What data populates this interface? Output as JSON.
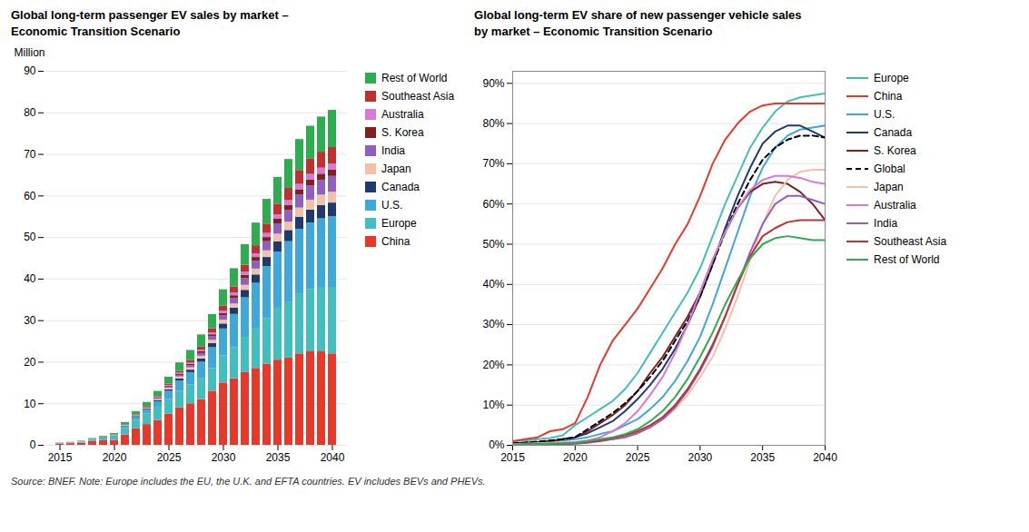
{
  "caption": "Source: BNEF. Note: Europe includes the EU, the U.K. and EFTA countries. EV includes BEVs and PHEVs.",
  "chart_data": [
    {
      "type": "bar",
      "stacked": true,
      "title": "Global long-term passenger EV sales by market –\nEconomic Transition Scenario",
      "y_label": "Million",
      "categories": [
        "2015",
        null,
        null,
        null,
        null,
        "2020",
        null,
        null,
        null,
        null,
        "2025",
        null,
        null,
        null,
        null,
        "2030",
        null,
        null,
        null,
        null,
        "2035",
        null,
        null,
        null,
        null,
        "2040"
      ],
      "series": [
        {
          "name": "China",
          "color": "#e8382a",
          "values": [
            0.3,
            0.4,
            0.55,
            0.9,
            1.1,
            1.2,
            2.5,
            4.0,
            5.0,
            6.0,
            7.5,
            9.0,
            10.0,
            11.0,
            13.0,
            15.0,
            16.0,
            17.5,
            18.5,
            19.5,
            20.5,
            21.0,
            22.0,
            22.5,
            22.5,
            22.0
          ]
        },
        {
          "name": "Europe",
          "color": "#42bebe",
          "values": [
            0.08,
            0.1,
            0.15,
            0.25,
            0.4,
            0.8,
            1.5,
            2.0,
            2.5,
            3.0,
            3.5,
            4.0,
            4.5,
            5.0,
            5.5,
            6.5,
            7.5,
            8.5,
            9.5,
            11.0,
            12.5,
            13.5,
            14.5,
            15.0,
            15.5,
            16.0
          ]
        },
        {
          "name": "U.S.",
          "color": "#3ea8d8",
          "values": [
            0.07,
            0.08,
            0.1,
            0.2,
            0.25,
            0.3,
            0.55,
            0.8,
            1.0,
            1.5,
            2.0,
            2.5,
            3.0,
            4.0,
            5.0,
            6.5,
            8.0,
            9.5,
            11.0,
            12.5,
            13.5,
            14.5,
            15.5,
            16.0,
            16.5,
            17.0
          ]
        },
        {
          "name": "Canada",
          "color": "#1e3a6e",
          "values": [
            0.01,
            0.01,
            0.02,
            0.03,
            0.04,
            0.05,
            0.1,
            0.15,
            0.2,
            0.3,
            0.4,
            0.5,
            0.6,
            0.8,
            1.0,
            1.2,
            1.5,
            1.8,
            2.0,
            2.2,
            2.5,
            2.7,
            2.9,
            3.1,
            3.2,
            3.3
          ]
        },
        {
          "name": "Japan",
          "color": "#f5c0a8",
          "values": [
            0.04,
            0.04,
            0.05,
            0.05,
            0.06,
            0.07,
            0.1,
            0.13,
            0.18,
            0.25,
            0.35,
            0.45,
            0.55,
            0.65,
            0.75,
            0.9,
            1.0,
            1.2,
            1.4,
            1.6,
            1.8,
            2.0,
            2.2,
            2.4,
            2.5,
            2.6
          ]
        },
        {
          "name": "India",
          "color": "#9060c0",
          "values": [
            0.01,
            0.01,
            0.01,
            0.02,
            0.03,
            0.04,
            0.07,
            0.1,
            0.13,
            0.18,
            0.28,
            0.38,
            0.5,
            0.65,
            0.85,
            1.05,
            1.3,
            1.6,
            1.9,
            2.2,
            2.5,
            2.8,
            3.1,
            3.4,
            3.6,
            3.8
          ]
        },
        {
          "name": "S. Korea",
          "color": "#802020",
          "values": [
            0.01,
            0.01,
            0.02,
            0.03,
            0.04,
            0.05,
            0.08,
            0.1,
            0.14,
            0.18,
            0.24,
            0.3,
            0.35,
            0.4,
            0.5,
            0.6,
            0.7,
            0.8,
            0.9,
            1.0,
            1.1,
            1.2,
            1.3,
            1.4,
            1.45,
            1.5
          ]
        },
        {
          "name": "Australia",
          "color": "#d878d8",
          "values": [
            0.0,
            0.0,
            0.01,
            0.01,
            0.01,
            0.02,
            0.03,
            0.05,
            0.07,
            0.1,
            0.16,
            0.22,
            0.28,
            0.37,
            0.47,
            0.58,
            0.68,
            0.78,
            0.88,
            0.98,
            1.08,
            1.18,
            1.28,
            1.38,
            1.44,
            1.5
          ]
        },
        {
          "name": "Southeast Asia",
          "color": "#c03030",
          "values": [
            0.01,
            0.01,
            0.01,
            0.02,
            0.03,
            0.04,
            0.07,
            0.1,
            0.15,
            0.22,
            0.32,
            0.45,
            0.6,
            0.75,
            0.95,
            1.15,
            1.38,
            1.65,
            1.95,
            2.25,
            2.55,
            2.95,
            3.35,
            3.65,
            3.85,
            3.95
          ]
        },
        {
          "name": "Rest of World",
          "color": "#2eac50",
          "values": [
            0.04,
            0.06,
            0.09,
            0.13,
            0.18,
            0.28,
            0.48,
            0.68,
            0.95,
            1.25,
            1.65,
            2.05,
            2.45,
            2.95,
            3.45,
            3.95,
            4.45,
            4.95,
            5.45,
            5.95,
            6.45,
            6.95,
            7.45,
            7.95,
            8.45,
            8.95
          ]
        }
      ],
      "ylim": [
        0,
        90
      ],
      "yticks": [
        0,
        10,
        20,
        30,
        40,
        50,
        60,
        70,
        80,
        90
      ],
      "grid": true,
      "legend": "right"
    },
    {
      "type": "line",
      "title": "Global long-term EV share of new passenger vehicle sales\nby market – Economic Transition Scenario",
      "x": [
        2015,
        2016,
        2017,
        2018,
        2019,
        2020,
        2021,
        2022,
        2023,
        2024,
        2025,
        2026,
        2027,
        2028,
        2029,
        2030,
        2031,
        2032,
        2033,
        2034,
        2035,
        2036,
        2037,
        2038,
        2039,
        2040
      ],
      "series": [
        {
          "name": "Europe",
          "color": "#42bebe",
          "line_style": "solid",
          "values": [
            1.0,
            1.2,
            1.5,
            1.8,
            2.5,
            5.0,
            7.0,
            9.0,
            11.0,
            14.0,
            18.0,
            23.0,
            28.0,
            33.0,
            38.0,
            44.0,
            52.0,
            60.0,
            67.0,
            74.0,
            79.0,
            83.0,
            85.5,
            86.5,
            87.0,
            87.5
          ]
        },
        {
          "name": "China",
          "color": "#e8382a",
          "line_style": "solid",
          "values": [
            1.0,
            1.5,
            2.0,
            3.5,
            4.0,
            5.5,
            12.0,
            20.0,
            26.0,
            30.0,
            34.0,
            39.0,
            44.0,
            50.0,
            55.0,
            62.0,
            70.0,
            76.0,
            80.0,
            83.0,
            84.5,
            85.0,
            85.0,
            85.0,
            85.0,
            85.0
          ]
        },
        {
          "name": "U.S.",
          "color": "#3ea8d8",
          "line_style": "solid",
          "values": [
            0.5,
            0.6,
            0.8,
            1.0,
            1.2,
            1.5,
            2.0,
            2.8,
            3.5,
            5.0,
            6.5,
            9.0,
            12.0,
            16.0,
            21.0,
            27.0,
            35.0,
            44.0,
            53.0,
            62.0,
            69.0,
            74.0,
            77.0,
            78.5,
            79.0,
            79.5
          ]
        },
        {
          "name": "Canada",
          "color": "#1e3a6e",
          "line_style": "solid",
          "values": [
            0.5,
            0.6,
            0.8,
            1.0,
            1.5,
            2.0,
            3.0,
            4.5,
            6.0,
            8.5,
            11.5,
            15.0,
            19.0,
            24.0,
            30.0,
            37.0,
            45.0,
            54.0,
            62.0,
            69.0,
            75.0,
            78.0,
            79.5,
            79.5,
            78.0,
            76.5
          ]
        },
        {
          "name": "S. Korea",
          "color": "#802020",
          "line_style": "solid",
          "values": [
            0.3,
            0.5,
            0.7,
            1.0,
            1.5,
            2.0,
            3.5,
            5.5,
            7.5,
            10.0,
            13.5,
            18.0,
            22.0,
            27.0,
            32.0,
            38.0,
            46.0,
            53.0,
            59.0,
            63.0,
            65.0,
            65.5,
            65.0,
            63.0,
            60.0,
            56.0
          ]
        },
        {
          "name": "Global",
          "color": "#000000",
          "line_style": "dashed",
          "values": [
            0.5,
            0.7,
            0.9,
            1.2,
            1.5,
            2.0,
            4.0,
            6.0,
            8.0,
            10.5,
            13.5,
            17.0,
            21.0,
            26.0,
            31.0,
            37.0,
            45.0,
            53.0,
            60.0,
            66.0,
            71.0,
            74.0,
            76.0,
            77.0,
            77.0,
            76.5
          ]
        },
        {
          "name": "Japan",
          "color": "#f5c0a8",
          "line_style": "solid",
          "values": [
            0.3,
            0.4,
            0.5,
            0.6,
            0.7,
            0.8,
            1.0,
            1.2,
            1.5,
            2.0,
            3.0,
            4.5,
            6.5,
            9.0,
            12.5,
            17.0,
            22.0,
            29.0,
            37.0,
            46.0,
            55.0,
            62.0,
            66.0,
            68.0,
            68.5,
            68.5
          ]
        },
        {
          "name": "Australia",
          "color": "#d878d8",
          "line_style": "solid",
          "values": [
            0.2,
            0.3,
            0.4,
            0.5,
            0.6,
            0.8,
            1.2,
            2.0,
            3.5,
            5.5,
            8.5,
            12.5,
            17.0,
            23.0,
            30.0,
            38.0,
            46.0,
            53.0,
            59.0,
            63.5,
            66.0,
            67.0,
            67.0,
            66.5,
            65.5,
            65.0
          ]
        },
        {
          "name": "India",
          "color": "#9060c0",
          "line_style": "solid",
          "values": [
            0.1,
            0.1,
            0.2,
            0.2,
            0.3,
            0.4,
            0.6,
            1.0,
            1.5,
            2.0,
            3.0,
            4.5,
            6.5,
            9.5,
            13.5,
            18.5,
            24.5,
            32.0,
            40.0,
            48.0,
            55.0,
            60.0,
            62.0,
            62.0,
            61.0,
            60.0
          ]
        },
        {
          "name": "Southeast Asia",
          "color": "#c03030",
          "line_style": "solid",
          "values": [
            0.1,
            0.2,
            0.2,
            0.3,
            0.4,
            0.5,
            0.8,
            1.2,
            1.8,
            2.5,
            3.5,
            5.0,
            7.0,
            10.0,
            14.0,
            19.0,
            25.0,
            32.0,
            40.0,
            47.0,
            52.0,
            54.0,
            55.5,
            56.0,
            56.0,
            56.0
          ]
        },
        {
          "name": "Rest of World",
          "color": "#2eac50",
          "line_style": "solid",
          "values": [
            0.2,
            0.2,
            0.3,
            0.4,
            0.5,
            0.6,
            1.0,
            1.5,
            2.0,
            2.8,
            4.0,
            6.0,
            8.5,
            12.0,
            16.5,
            22.0,
            28.0,
            35.0,
            41.0,
            46.5,
            50.0,
            51.5,
            52.0,
            51.5,
            51.0,
            51.0
          ]
        }
      ],
      "xlim": [
        2015,
        2040
      ],
      "xticks": [
        2015,
        2020,
        2025,
        2030,
        2035,
        2040
      ],
      "ylim": [
        0,
        93
      ],
      "yticks": [
        {
          "value": 0,
          "label": "0%"
        },
        {
          "value": 10,
          "label": "10%"
        },
        {
          "value": 20,
          "label": "20%"
        },
        {
          "value": 30,
          "label": "30%"
        },
        {
          "value": 40,
          "label": "40%"
        },
        {
          "value": 50,
          "label": "50%"
        },
        {
          "value": 60,
          "label": "60%"
        },
        {
          "value": 70,
          "label": "70%"
        },
        {
          "value": 80,
          "label": "80%"
        },
        {
          "value": 90,
          "label": "90%"
        }
      ],
      "grid": true,
      "legend": "right"
    }
  ]
}
